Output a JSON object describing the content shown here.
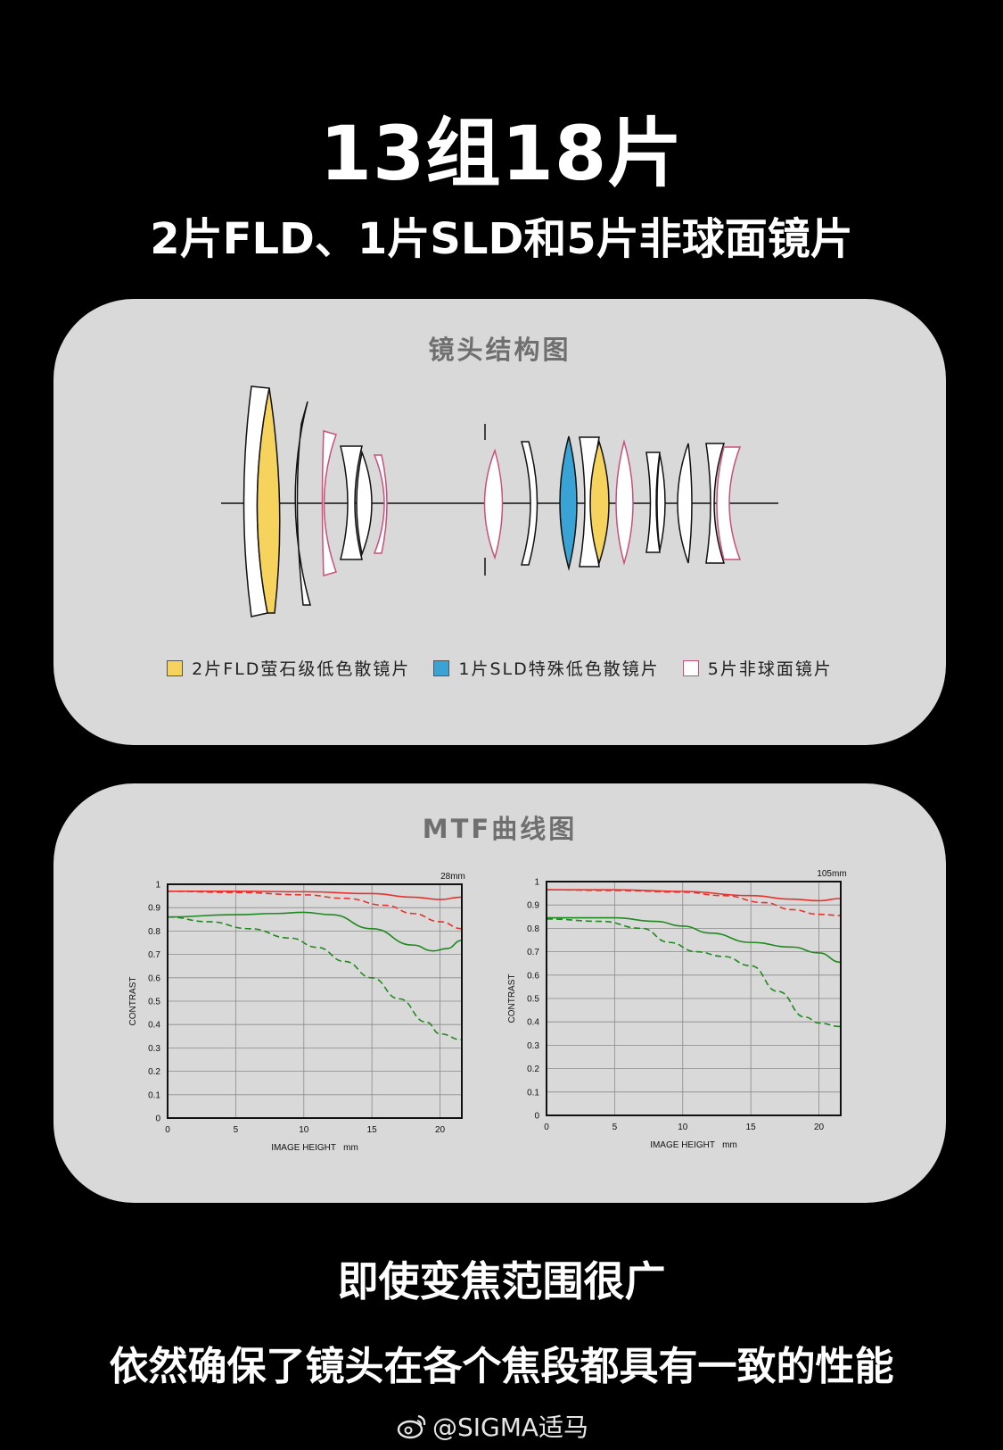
{
  "header": {
    "title": "13组18片",
    "subtitle": "2片FLD、1片SLD和5片非球面镜片"
  },
  "lens_panel": {
    "title": "镜头结构图",
    "legend": [
      {
        "label": "2片FLD萤石级低色散镜片",
        "color": "#f6d35d"
      },
      {
        "label": "1片SLD特殊低色散镜片",
        "color": "#3aa3d6"
      },
      {
        "label": "5片非球面镜片",
        "color": "#ffffff",
        "border": "#c8507a"
      }
    ]
  },
  "mtf_panel": {
    "title": "MTF曲线图"
  },
  "chart_data": [
    {
      "type": "line",
      "label": "28mm",
      "xlabel": "IMAGE HEIGHT   mm",
      "ylabel": "CONTRAST",
      "xlim": [
        0,
        21.6
      ],
      "ylim": [
        0,
        1
      ],
      "xticks": [
        0,
        5,
        10,
        15,
        20
      ],
      "yticks": [
        0,
        0.1,
        0.2,
        0.3,
        0.4,
        0.5,
        0.6,
        0.7,
        0.8,
        0.9,
        1
      ],
      "grid": true,
      "series": [
        {
          "color": "#e8322d",
          "style": "solid",
          "x": [
            0,
            5,
            10,
            15,
            18,
            20,
            21.6
          ],
          "y": [
            0.97,
            0.97,
            0.968,
            0.96,
            0.945,
            0.935,
            0.945
          ]
        },
        {
          "color": "#e8322d",
          "style": "dashed",
          "x": [
            0,
            5,
            10,
            13,
            16,
            18,
            20,
            21.6
          ],
          "y": [
            0.97,
            0.965,
            0.955,
            0.94,
            0.91,
            0.875,
            0.84,
            0.81
          ]
        },
        {
          "color": "#1f8a1f",
          "style": "solid",
          "x": [
            0,
            5,
            8,
            10,
            12,
            15,
            18,
            19.5,
            20.5,
            21.6
          ],
          "y": [
            0.86,
            0.87,
            0.875,
            0.88,
            0.87,
            0.81,
            0.74,
            0.715,
            0.725,
            0.76
          ]
        },
        {
          "color": "#1f8a1f",
          "style": "dashed",
          "x": [
            0,
            3,
            6,
            9,
            11,
            13,
            15,
            17,
            19,
            20,
            21.6
          ],
          "y": [
            0.86,
            0.84,
            0.81,
            0.77,
            0.73,
            0.67,
            0.6,
            0.51,
            0.41,
            0.36,
            0.335
          ]
        }
      ]
    },
    {
      "type": "line",
      "label": "105mm",
      "xlabel": "IMAGE HEIGHT   mm",
      "ylabel": "CONTRAST",
      "xlim": [
        0,
        21.6
      ],
      "ylim": [
        0,
        1
      ],
      "xticks": [
        0,
        5,
        10,
        15,
        20
      ],
      "yticks": [
        0,
        0.1,
        0.2,
        0.3,
        0.4,
        0.5,
        0.6,
        0.7,
        0.8,
        0.9,
        1
      ],
      "grid": true,
      "series": [
        {
          "color": "#e8322d",
          "style": "solid",
          "x": [
            0,
            5,
            10,
            15,
            18,
            20,
            21.6
          ],
          "y": [
            0.965,
            0.965,
            0.958,
            0.94,
            0.925,
            0.918,
            0.928
          ]
        },
        {
          "color": "#e8322d",
          "style": "dashed",
          "x": [
            0,
            5,
            10,
            13,
            16,
            18,
            20,
            21.6
          ],
          "y": [
            0.965,
            0.962,
            0.955,
            0.94,
            0.91,
            0.88,
            0.86,
            0.855
          ]
        },
        {
          "color": "#1f8a1f",
          "style": "solid",
          "x": [
            0,
            5,
            8,
            10,
            12,
            15,
            18,
            20,
            21.6
          ],
          "y": [
            0.845,
            0.845,
            0.83,
            0.81,
            0.78,
            0.74,
            0.72,
            0.695,
            0.655
          ]
        },
        {
          "color": "#1f8a1f",
          "style": "dashed",
          "x": [
            0,
            4,
            7,
            9,
            11,
            13,
            15,
            17,
            19,
            20,
            21.6
          ],
          "y": [
            0.84,
            0.83,
            0.8,
            0.74,
            0.7,
            0.68,
            0.64,
            0.53,
            0.42,
            0.395,
            0.38
          ]
        }
      ]
    }
  ],
  "footer": {
    "line1": "即使变焦范围很广",
    "line2": "依然确保了镜头在各个焦段都具有一致的性能",
    "watermark": "@SIGMA适马"
  }
}
